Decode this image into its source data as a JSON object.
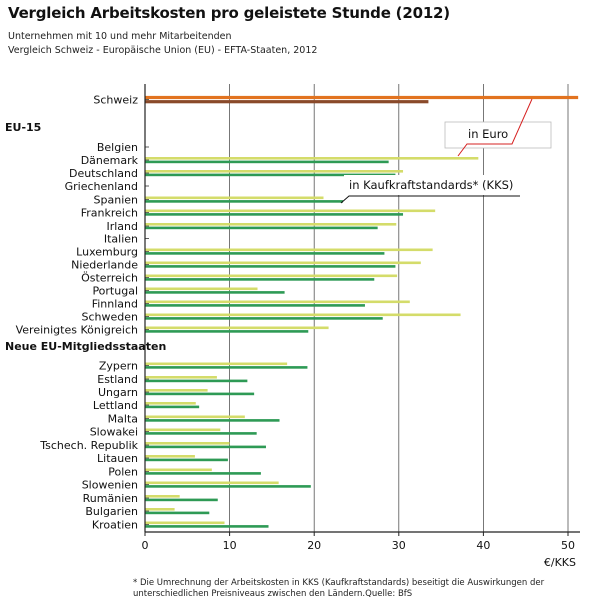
{
  "title": "Vergleich Arbeitskosten pro geleistete Stunde (2012)",
  "subtitle_1": "Unternehmen mit 10 und mehr Mitarbeitenden",
  "subtitle_2": "Vergleich Schweiz - Europäische Union (EU) - EFTA-Staaten, 2012",
  "footnote": "* Die Umrechnung der Arbeitskosten in KKS (Kaufkraftstandards) beseitigt die Auswirkungen der unterschiedlichen Preisniveaus zwischen den Ländern.Quelle: BfS",
  "colors": {
    "euro": "#d4dc6a",
    "kks": "#2e9a55",
    "ch_euro": "#e2731f",
    "ch_kks": "#8a4a2a",
    "grid": "#555555",
    "callout": "#d62020"
  },
  "chart_data": {
    "type": "bar",
    "orientation": "horizontal",
    "xlabel": "€/KKS",
    "xlim": [
      0,
      52
    ],
    "xticks": [
      0,
      10,
      20,
      30,
      40,
      50
    ],
    "grid": true,
    "series": [
      {
        "name": "in Euro",
        "key": "euro"
      },
      {
        "name": "in Kaufkraftstandards* (KKS)",
        "key": "kks"
      }
    ],
    "annotations": {
      "euro": "in Euro",
      "kks": "in Kaufkraftstandards* (KKS)"
    },
    "groups": [
      {
        "label": "",
        "rows": [
          {
            "category": "Schweiz",
            "euro": 51.2,
            "kks": 33.5
          }
        ]
      },
      {
        "label": "EU-15",
        "rows": [
          {
            "category": "Belgien",
            "euro": null,
            "kks": null
          },
          {
            "category": "Dänemark",
            "euro": 39.4,
            "kks": 28.8
          },
          {
            "category": "Deutschland",
            "euro": 30.5,
            "kks": 29.6
          },
          {
            "category": "Griechenland",
            "euro": null,
            "kks": null
          },
          {
            "category": "Spanien",
            "euro": 21.1,
            "kks": 23.4
          },
          {
            "category": "Frankreich",
            "euro": 34.3,
            "kks": 30.5
          },
          {
            "category": "Irland",
            "euro": 29.7,
            "kks": 27.5
          },
          {
            "category": "Italien",
            "euro": null,
            "kks": null
          },
          {
            "category": "Luxemburg",
            "euro": 34.0,
            "kks": 28.3
          },
          {
            "category": "Niederlande",
            "euro": 32.6,
            "kks": 29.6
          },
          {
            "category": "Österreich",
            "euro": 29.8,
            "kks": 27.1
          },
          {
            "category": "Portugal",
            "euro": 13.3,
            "kks": 16.5
          },
          {
            "category": "Finnland",
            "euro": 31.3,
            "kks": 26.0
          },
          {
            "category": "Schweden",
            "euro": 37.3,
            "kks": 28.1
          },
          {
            "category": "Vereinigtes Königreich",
            "euro": 21.7,
            "kks": 19.3
          }
        ]
      },
      {
        "label": "Neue EU-Mitgliedsstaaten",
        "rows": [
          {
            "category": "Zypern",
            "euro": 16.8,
            "kks": 19.2
          },
          {
            "category": "Estland",
            "euro": 8.5,
            "kks": 12.1
          },
          {
            "category": "Ungarn",
            "euro": 7.4,
            "kks": 12.9
          },
          {
            "category": "Lettland",
            "euro": 6.0,
            "kks": 6.4
          },
          {
            "category": "Malta",
            "euro": 11.8,
            "kks": 15.9
          },
          {
            "category": "Slowakei",
            "euro": 8.9,
            "kks": 13.2
          },
          {
            "category": "Tschech. Republik",
            "euro": 10.0,
            "kks": 14.3
          },
          {
            "category": "Litauen",
            "euro": 5.9,
            "kks": 9.8
          },
          {
            "category": "Polen",
            "euro": 7.9,
            "kks": 13.7
          },
          {
            "category": "Slowenien",
            "euro": 15.8,
            "kks": 19.6
          },
          {
            "category": "Rumänien",
            "euro": 4.1,
            "kks": 8.6
          },
          {
            "category": "Bulgarien",
            "euro": 3.5,
            "kks": 7.6
          },
          {
            "category": "Kroatien",
            "euro": 9.4,
            "kks": 14.6
          }
        ]
      }
    ]
  }
}
